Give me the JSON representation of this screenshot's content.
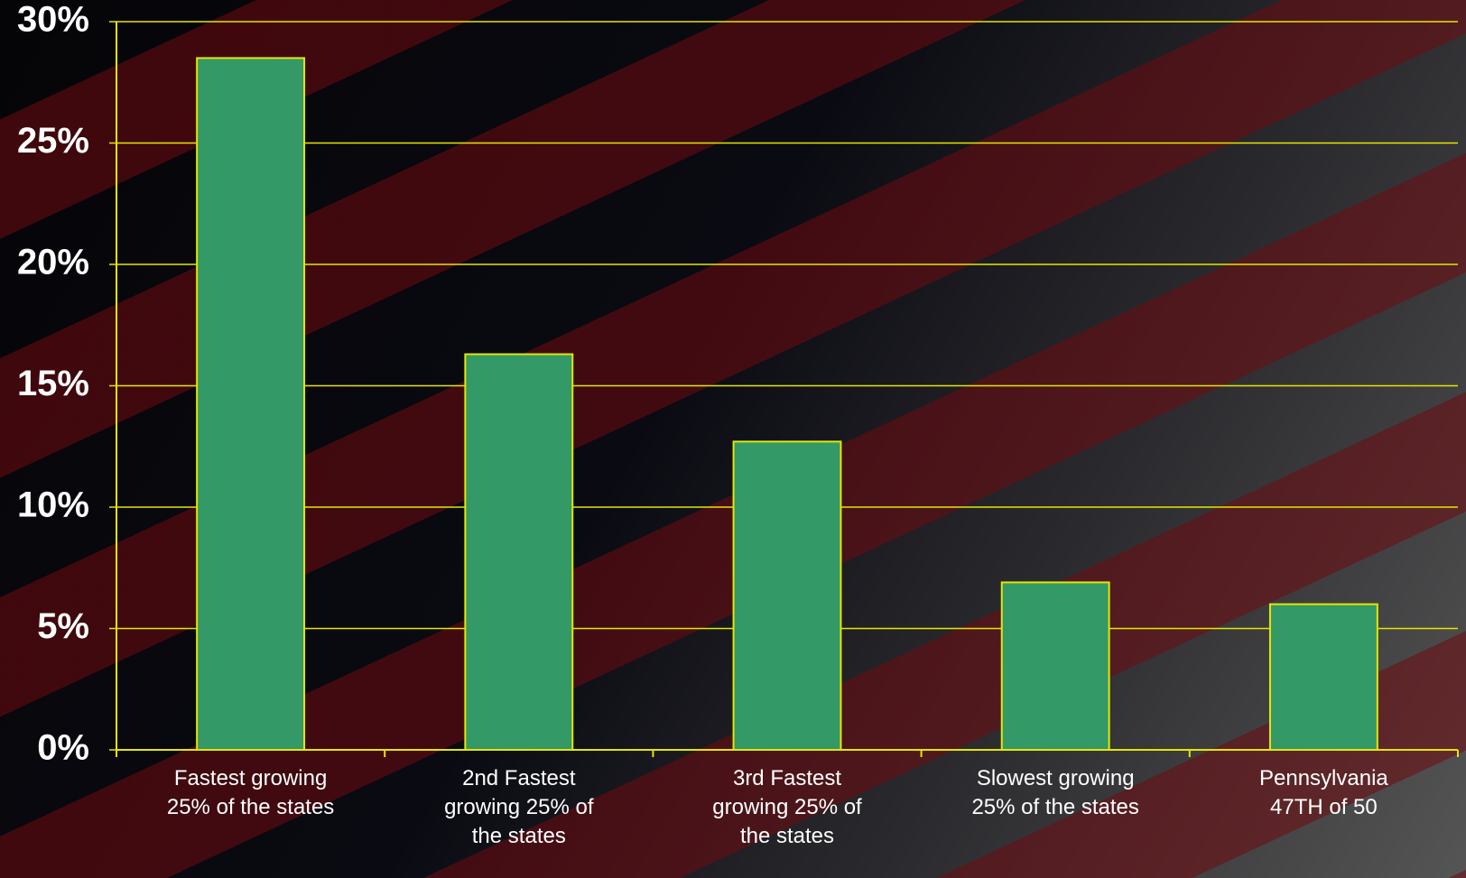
{
  "chart_data": {
    "type": "bar",
    "categories": [
      "Fastest growing 25% of the states",
      "2nd Fastest growing 25% of the states",
      "3rd Fastest growing 25% of the states",
      "Slowest growing 25% of the states",
      "Pennsylvania 47TH of 50"
    ],
    "values": [
      28.5,
      16.3,
      12.7,
      6.9,
      6.0
    ],
    "color": "#339966",
    "ylim": [
      0,
      30
    ],
    "yticks": [
      {
        "value": 0,
        "label": "0%"
      },
      {
        "value": 5,
        "label": "5%"
      },
      {
        "value": 10,
        "label": "10%"
      },
      {
        "value": 15,
        "label": "15%"
      },
      {
        "value": 20,
        "label": "20%"
      },
      {
        "value": 25,
        "label": "25%"
      },
      {
        "value": 30,
        "label": "30%"
      }
    ],
    "grid": true
  }
}
